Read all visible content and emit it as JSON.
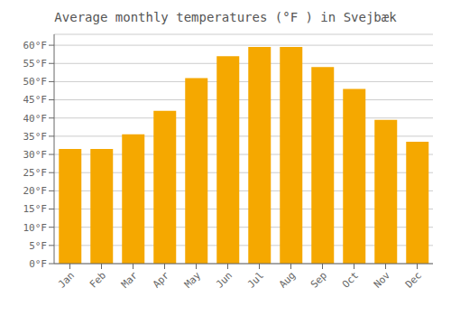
{
  "chart_data": {
    "type": "bar",
    "title": "Average monthly temperatures (°F ) in Svejbæk",
    "categories": [
      "Jan",
      "Feb",
      "Mar",
      "Apr",
      "May",
      "Jun",
      "Jul",
      "Aug",
      "Sep",
      "Oct",
      "Nov",
      "Dec"
    ],
    "values": [
      31.5,
      31.5,
      35.5,
      42,
      51,
      57,
      59.5,
      59.5,
      54,
      48,
      39.5,
      33.5
    ],
    "color": "#F5A800",
    "ylim": [
      0,
      63
    ],
    "yticks": [
      {
        "value": 0,
        "label": "0°F"
      },
      {
        "value": 5,
        "label": "5°F"
      },
      {
        "value": 10,
        "label": "10°F"
      },
      {
        "value": 15,
        "label": "15°F"
      },
      {
        "value": 20,
        "label": "20°F"
      },
      {
        "value": 25,
        "label": "25°F"
      },
      {
        "value": 30,
        "label": "30°F"
      },
      {
        "value": 35,
        "label": "35°F"
      },
      {
        "value": 40,
        "label": "40°F"
      },
      {
        "value": 45,
        "label": "45°F"
      },
      {
        "value": 50,
        "label": "50°F"
      },
      {
        "value": 55,
        "label": "55°F"
      },
      {
        "value": 60,
        "label": "60°F"
      }
    ],
    "grid": true
  }
}
